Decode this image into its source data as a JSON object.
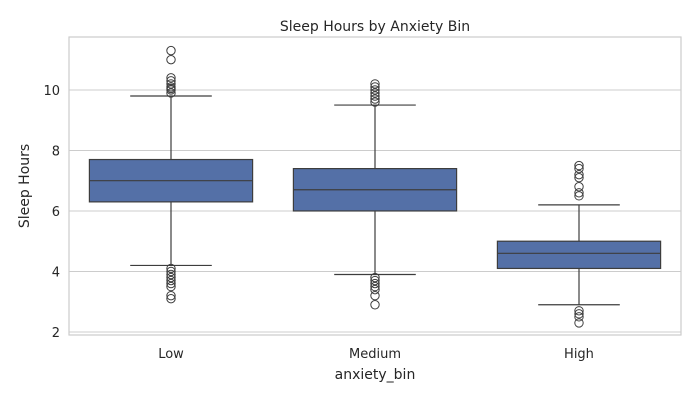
{
  "chart_data": {
    "type": "box",
    "title": "Sleep Hours by Anxiety Bin",
    "xlabel": "anxiety_bin",
    "ylabel": "Sleep Hours",
    "ylim": [
      1.9,
      11.75
    ],
    "yticks": [
      2,
      4,
      6,
      8,
      10
    ],
    "grid": "horizontal",
    "colors": {
      "box_fill": "#5470a7",
      "line": "#3d3d3d",
      "grid": "#cccccc",
      "spine": "#cccccc"
    },
    "categories": [
      "Low",
      "Medium",
      "High"
    ],
    "boxes": [
      {
        "category": "Low",
        "whisker_low": 4.2,
        "q1": 6.3,
        "median": 7.0,
        "q3": 7.7,
        "whisker_high": 9.8,
        "outliers": [
          9.9,
          10.0,
          10.05,
          10.1,
          10.2,
          10.3,
          10.4,
          11.0,
          11.3,
          4.1,
          4.0,
          3.9,
          3.8,
          3.7,
          3.6,
          3.5,
          3.2,
          3.1
        ]
      },
      {
        "category": "Medium",
        "whisker_low": 3.9,
        "q1": 6.0,
        "median": 6.7,
        "q3": 7.4,
        "whisker_high": 9.5,
        "outliers": [
          9.6,
          9.7,
          9.8,
          9.9,
          10.0,
          10.1,
          10.2,
          3.8,
          3.7,
          3.6,
          3.5,
          3.4,
          3.2,
          2.9
        ]
      },
      {
        "category": "High",
        "whisker_low": 2.9,
        "q1": 4.1,
        "median": 4.6,
        "q3": 5.0,
        "whisker_high": 6.2,
        "outliers": [
          6.5,
          6.6,
          6.8,
          7.1,
          7.2,
          7.4,
          7.5,
          2.7,
          2.6,
          2.5,
          2.3
        ]
      }
    ]
  }
}
